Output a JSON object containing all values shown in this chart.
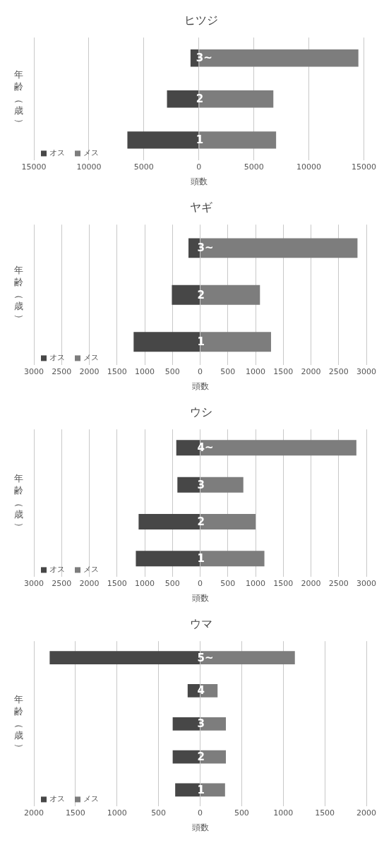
{
  "chart_data": [
    {
      "type": "bar",
      "orientation": "horizontal",
      "stacked": true,
      "title": "ヒツジ",
      "xlabel": "頭数",
      "ylabel": "年齢（歳）",
      "categories": [
        "3~",
        "2",
        "1"
      ],
      "series": [
        {
          "name": "オス",
          "color": "#474747",
          "values": [
            -760,
            -2900,
            -6500
          ]
        },
        {
          "name": "メス",
          "color": "#7d7d7d",
          "values": [
            14500,
            6770,
            7020
          ]
        }
      ],
      "xlim": [
        -15000,
        15000
      ],
      "xticks": [
        {
          "value": -15000,
          "label": "15000"
        },
        {
          "value": -10000,
          "label": "10000"
        },
        {
          "value": -5000,
          "label": "5000"
        },
        0,
        5000,
        10000,
        15000
      ],
      "grid": "x",
      "legend": "bottom left"
    },
    {
      "type": "bar",
      "orientation": "horizontal",
      "stacked": true,
      "title": "ヤギ",
      "xlabel": "頭数",
      "ylabel": "年齢（歳）",
      "categories": [
        "3~",
        "2",
        "1"
      ],
      "series": [
        {
          "name": "オス",
          "color": "#474747",
          "values": [
            -210,
            -510,
            -1200
          ]
        },
        {
          "name": "メス",
          "color": "#7d7d7d",
          "values": [
            2840,
            1080,
            1280
          ]
        }
      ],
      "xlim": [
        -3000,
        3000
      ],
      "xticks": [
        {
          "value": -3000,
          "label": "3000"
        },
        {
          "value": -2500,
          "label": "2500"
        },
        {
          "value": -2000,
          "label": "2000"
        },
        {
          "value": -1500,
          "label": "1500"
        },
        {
          "value": -1000,
          "label": "1000"
        },
        {
          "value": -500,
          "label": "500"
        },
        0,
        500,
        1000,
        1500,
        2000,
        2500,
        3000
      ],
      "grid": "x",
      "legend": "bottom left"
    },
    {
      "type": "bar",
      "orientation": "horizontal",
      "stacked": true,
      "title": "ウシ",
      "xlabel": "頭数",
      "ylabel": "年齢（歳）",
      "categories": [
        "4~",
        "3",
        "2",
        "1"
      ],
      "series": [
        {
          "name": "オス",
          "color": "#474747",
          "values": [
            -430,
            -410,
            -1110,
            -1160
          ]
        },
        {
          "name": "メス",
          "color": "#7d7d7d",
          "values": [
            2820,
            780,
            1000,
            1160
          ]
        }
      ],
      "xlim": [
        -3000,
        3000
      ],
      "xticks": [
        {
          "value": -3000,
          "label": "3000"
        },
        {
          "value": -2500,
          "label": "2500"
        },
        {
          "value": -2000,
          "label": "2000"
        },
        {
          "value": -1500,
          "label": "1500"
        },
        {
          "value": -1000,
          "label": "1000"
        },
        {
          "value": -500,
          "label": "500"
        },
        0,
        500,
        1000,
        1500,
        2000,
        2500,
        3000
      ],
      "grid": "x",
      "legend": "bottom left"
    },
    {
      "type": "bar",
      "orientation": "horizontal",
      "stacked": true,
      "title": "ウマ",
      "xlabel": "頭数",
      "ylabel": "年齢（歳）",
      "categories": [
        "5~",
        "4",
        "3",
        "2",
        "1"
      ],
      "series": [
        {
          "name": "オス",
          "color": "#474747",
          "values": [
            -1810,
            -150,
            -330,
            -330,
            -300
          ]
        },
        {
          "name": "メス",
          "color": "#7d7d7d",
          "values": [
            1140,
            210,
            310,
            310,
            300
          ]
        }
      ],
      "xlim": [
        -2000,
        2000
      ],
      "xticks": [
        {
          "value": -2000,
          "label": "2000"
        },
        {
          "value": -1500,
          "label": "1500"
        },
        {
          "value": -1000,
          "label": "1000"
        },
        {
          "value": -500,
          "label": "500"
        },
        0,
        500,
        1000,
        1500,
        2000
      ],
      "grid": "x",
      "legend": "bottom left"
    }
  ]
}
